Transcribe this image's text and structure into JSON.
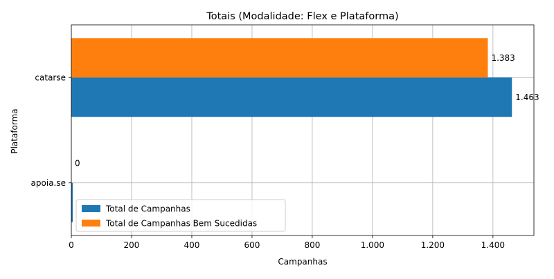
{
  "chart_data": {
    "type": "bar",
    "orientation": "horizontal",
    "title": "Totais (Modalidade: Flex e Plataforma)",
    "xlabel": "Campanhas",
    "ylabel": "Plataforma",
    "categories": [
      "apoia.se",
      "catarse"
    ],
    "series": [
      {
        "name": "Total de Campanhas",
        "values": [
          5,
          1463
        ],
        "labels": [
          "",
          "1.463"
        ],
        "color": "#1f77b4"
      },
      {
        "name": "Total de Campanhas Bem Sucedidas",
        "values": [
          0,
          1383
        ],
        "labels": [
          "0",
          "1.383"
        ],
        "color": "#ff7f0e"
      }
    ],
    "xlim": [
      0,
      1536
    ],
    "xticks": [
      0,
      200,
      400,
      600,
      800,
      1000,
      1200,
      1400
    ],
    "xtick_labels": [
      "0",
      "200",
      "400",
      "600",
      "800",
      "1.000",
      "1.200",
      "1.400"
    ],
    "grid": true,
    "legend_position": "lower-left"
  }
}
